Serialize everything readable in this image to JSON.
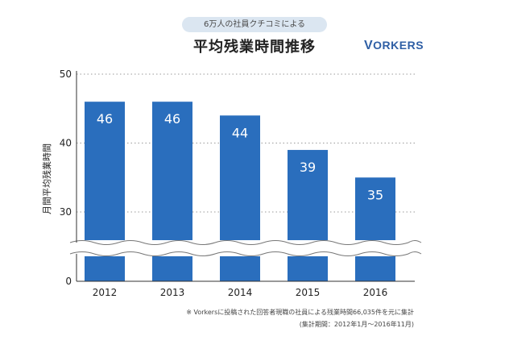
{
  "header": {
    "badge": "6万人の社員クチコミによる",
    "title": "平均残業時間推移",
    "brand_initial": "V",
    "brand_rest": "ORKERS"
  },
  "colors": {
    "bar": "#2a6ebd",
    "bar_label": "#ffffff",
    "badge_bg": "#dbe6f1",
    "brand": "#2f5fa5"
  },
  "chart_data": {
    "type": "bar",
    "categories": [
      "2012",
      "2013",
      "2014",
      "2015",
      "2016"
    ],
    "values": [
      46,
      46,
      44,
      39,
      35
    ],
    "ylabel": "月間平均残業時間",
    "yticks": [
      0,
      30,
      40,
      50
    ],
    "ylim": [
      0,
      50
    ],
    "axis_break": "between 0 and 30",
    "grid": "dotted horizontal at 30, 40, 50",
    "legend": "none"
  },
  "footnote": {
    "line1": "※ Vorkersに投稿された回答者現職の社員による残業時間66,035件を元に集計",
    "line2": "(集計期間：2012年1月〜2016年11月)"
  }
}
